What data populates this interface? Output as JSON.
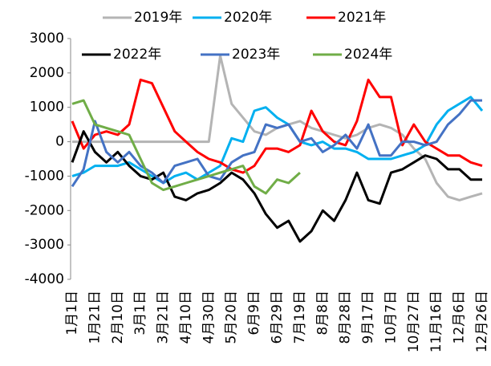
{
  "chart_data": {
    "type": "line",
    "categories": [
      "1月1日",
      null,
      "1月21日",
      null,
      "2月10日",
      null,
      "3月1日",
      null,
      "3月21日",
      null,
      "4月10日",
      null,
      "4月30日",
      null,
      "5月20日",
      null,
      "6月9日",
      null,
      "6月29日",
      null,
      "7月19日",
      null,
      "8月8日",
      null,
      "8月28日",
      null,
      "9月17日",
      null,
      "10月7日",
      null,
      "10月27日",
      null,
      "11月16日",
      null,
      "12月6日",
      null,
      "12月26日"
    ],
    "series": [
      {
        "name": "2019年",
        "color": "#b4b4b4",
        "values": [
          0,
          0,
          0,
          0,
          0,
          0,
          0,
          0,
          0,
          0,
          0,
          0,
          0,
          2500,
          1100,
          700,
          300,
          200,
          400,
          500,
          600,
          400,
          300,
          200,
          100,
          200,
          400,
          500,
          400,
          200,
          -200,
          -500,
          -1200,
          -1600,
          -1700,
          -1600,
          -1500
        ]
      },
      {
        "name": "2020年",
        "color": "#00b0f0",
        "values": [
          -1000,
          -900,
          -700,
          -700,
          -700,
          -600,
          -800,
          -1000,
          -1200,
          -1000,
          -900,
          -1100,
          -900,
          -700,
          100,
          0,
          900,
          1000,
          700,
          500,
          0,
          -100,
          0,
          -200,
          -200,
          -300,
          -500,
          -500,
          -500,
          -400,
          -300,
          -100,
          500,
          900,
          1100,
          1300,
          900
        ]
      },
      {
        "name": "2021年",
        "color": "#ff0000",
        "values": [
          600,
          -200,
          200,
          300,
          200,
          500,
          1800,
          1700,
          1000,
          300,
          0,
          -300,
          -500,
          -600,
          -800,
          -900,
          -700,
          -200,
          -200,
          -300,
          -100,
          900,
          300,
          0,
          -100,
          600,
          1800,
          1300,
          1300,
          -100,
          500,
          0,
          -200,
          -400,
          -400,
          -600,
          -700
        ]
      },
      {
        "name": "2022年",
        "color": "#000000",
        "values": [
          -600,
          300,
          -300,
          -600,
          -300,
          -700,
          -1000,
          -1100,
          -900,
          -1600,
          -1700,
          -1500,
          -1400,
          -1200,
          -900,
          -1100,
          -1500,
          -2100,
          -2500,
          -2300,
          -2900,
          -2600,
          -2000,
          -2300,
          -1700,
          -900,
          -1700,
          -1800,
          -900,
          -800,
          -600,
          -400,
          -500,
          -800,
          -800,
          -1100,
          -1100
        ]
      },
      {
        "name": "2023年",
        "color": "#4472c4",
        "values": [
          -1300,
          -800,
          600,
          -300,
          -600,
          -300,
          -700,
          -900,
          -1200,
          -700,
          -600,
          -500,
          -1000,
          -1100,
          -600,
          -400,
          -300,
          500,
          400,
          500,
          0,
          100,
          -300,
          -100,
          200,
          -200,
          500,
          -400,
          -400,
          0,
          0,
          -100,
          0,
          500,
          800,
          1200,
          1200
        ]
      },
      {
        "name": "2024年",
        "color": "#70ad47",
        "values": [
          1100,
          1200,
          500,
          400,
          300,
          200,
          -500,
          -1200,
          -1400,
          -1300,
          -1200,
          -1100,
          -1000,
          -900,
          -800,
          -700,
          -1300,
          -1500,
          -1100,
          -1200,
          -900,
          null,
          null,
          null,
          null,
          null,
          null,
          null,
          null,
          null,
          null,
          null,
          null,
          null,
          null,
          null,
          null
        ]
      }
    ],
    "ylim": [
      -4000,
      3000
    ],
    "yticks": [
      -4000,
      -3000,
      -2000,
      -1000,
      0,
      1000,
      2000,
      3000
    ]
  }
}
